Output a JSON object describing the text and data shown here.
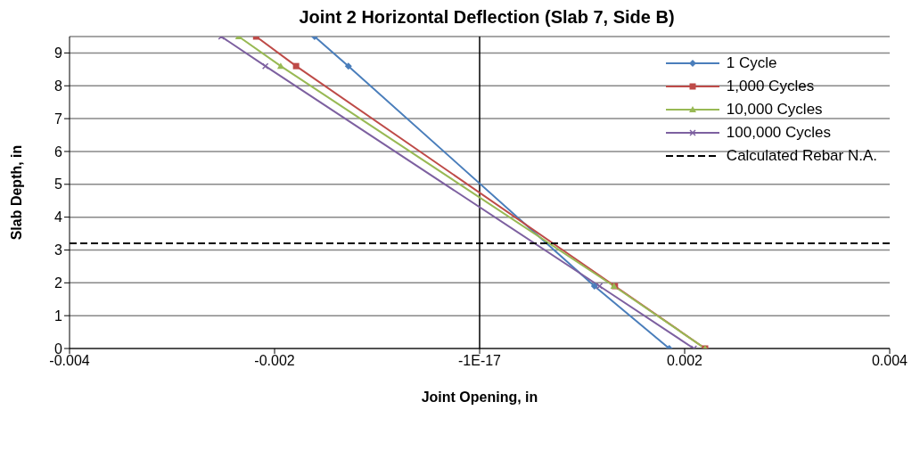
{
  "chart_data": {
    "type": "line",
    "title": "Joint 2 Horizontal Deflection (Slab 7, Side B)",
    "xlabel": "Joint Opening, in",
    "ylabel": "Slab Depth, in",
    "xlim": [
      -0.004,
      0.004
    ],
    "xticks": [
      -0.004,
      -0.002,
      {
        "value": 0,
        "label": "-1E-17"
      },
      0.002,
      0.004
    ],
    "ylim": [
      0,
      9.5
    ],
    "yticks": [
      0,
      1,
      2,
      3,
      4,
      5,
      6,
      7,
      8,
      9
    ],
    "grid": "y",
    "legend": "top right",
    "line_style": "solid",
    "series": [
      {
        "name": "1 Cycle",
        "color": "#4a7ebb",
        "marker": "diamond",
        "x": [
          0.00185,
          0.00112,
          -0.00128,
          -0.00161
        ],
        "values": [
          0,
          1.9,
          8.6,
          9.5
        ]
      },
      {
        "name": "1,000 Cycles",
        "color": "#be4b48",
        "marker": "square",
        "x": [
          0.0022,
          0.00132,
          -0.00179,
          -0.00218
        ],
        "values": [
          0,
          1.9,
          8.6,
          9.5
        ]
      },
      {
        "name": "10,000 Cycles",
        "color": "#98b954",
        "marker": "triangle",
        "x": [
          0.0022,
          0.00131,
          -0.00194,
          -0.00235
        ],
        "values": [
          0,
          1.9,
          8.6,
          9.5
        ]
      },
      {
        "name": "100,000 Cycles",
        "color": "#7d60a0",
        "marker": "cross",
        "x": [
          0.00209,
          0.00117,
          -0.00209,
          -0.00252
        ],
        "values": [
          0,
          1.9,
          8.6,
          9.5
        ]
      },
      {
        "name": "Calculated Rebar N.A.",
        "color": "#000000",
        "marker": "none",
        "line_style": "dashed",
        "x": [
          -0.004,
          0.004
        ],
        "values": [
          3.2,
          3.2
        ]
      }
    ],
    "ref_lines": [
      {
        "axis": "x",
        "value": 0,
        "color": "#000000"
      }
    ]
  }
}
